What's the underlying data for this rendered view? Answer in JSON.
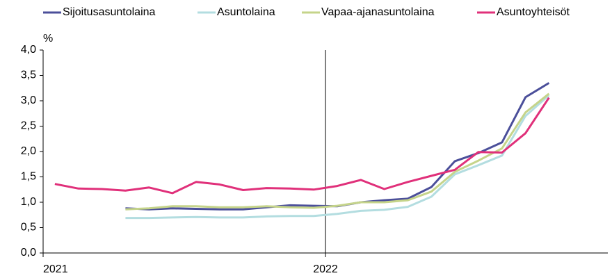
{
  "chart_data": {
    "type": "line",
    "y_label": "%",
    "categories": [
      "2021",
      null,
      null,
      null,
      null,
      null,
      null,
      null,
      null,
      null,
      null,
      null,
      "2022",
      null,
      null,
      null,
      null,
      null,
      null,
      null,
      null,
      null,
      null,
      null
    ],
    "series": [
      {
        "name": "Sijoitusasuntolaina",
        "color": "#4b4f9a",
        "values": [
          null,
          null,
          null,
          0.88,
          0.86,
          0.88,
          0.87,
          0.86,
          0.86,
          0.9,
          0.94,
          0.93,
          0.92,
          1.0,
          1.04,
          1.07,
          1.3,
          1.81,
          1.97,
          2.18,
          3.07,
          3.35,
          null,
          null
        ]
      },
      {
        "name": "Asuntolaina",
        "color": "#b3dde0",
        "values": [
          null,
          null,
          null,
          0.69,
          0.69,
          0.7,
          0.71,
          0.7,
          0.7,
          0.72,
          0.73,
          0.73,
          0.77,
          0.83,
          0.85,
          0.91,
          1.11,
          1.55,
          1.73,
          1.92,
          2.7,
          3.11,
          null,
          null
        ]
      },
      {
        "name": "Vapaa-ajanasuntolaina",
        "color": "#c5d48a",
        "values": [
          null,
          null,
          null,
          0.86,
          0.88,
          0.92,
          0.92,
          0.9,
          0.9,
          0.92,
          0.9,
          0.89,
          0.93,
          1.0,
          1.0,
          1.04,
          1.21,
          1.6,
          1.82,
          2.06,
          2.77,
          3.14,
          null,
          null
        ]
      },
      {
        "name": "Asuntoyhteisöt",
        "color": "#e0307a",
        "values": [
          1.36,
          1.27,
          1.26,
          1.23,
          1.29,
          1.18,
          1.4,
          1.35,
          1.24,
          1.28,
          1.27,
          1.25,
          1.32,
          1.44,
          1.26,
          1.4,
          1.52,
          1.64,
          1.99,
          1.98,
          2.36,
          3.06,
          null,
          null
        ]
      }
    ],
    "ylim": [
      0,
      4
    ],
    "yticks": [
      {
        "value": 0,
        "label": "0,0"
      },
      {
        "value": 0.5,
        "label": "0,5"
      },
      {
        "value": 1,
        "label": "1,0"
      },
      {
        "value": 1.5,
        "label": "1,5"
      },
      {
        "value": 2,
        "label": "2,0"
      },
      {
        "value": 2.5,
        "label": "2,5"
      },
      {
        "value": 3,
        "label": "3,0"
      },
      {
        "value": 3.5,
        "label": "3,5"
      },
      {
        "value": 4,
        "label": "4,0"
      }
    ],
    "legend": "top"
  }
}
